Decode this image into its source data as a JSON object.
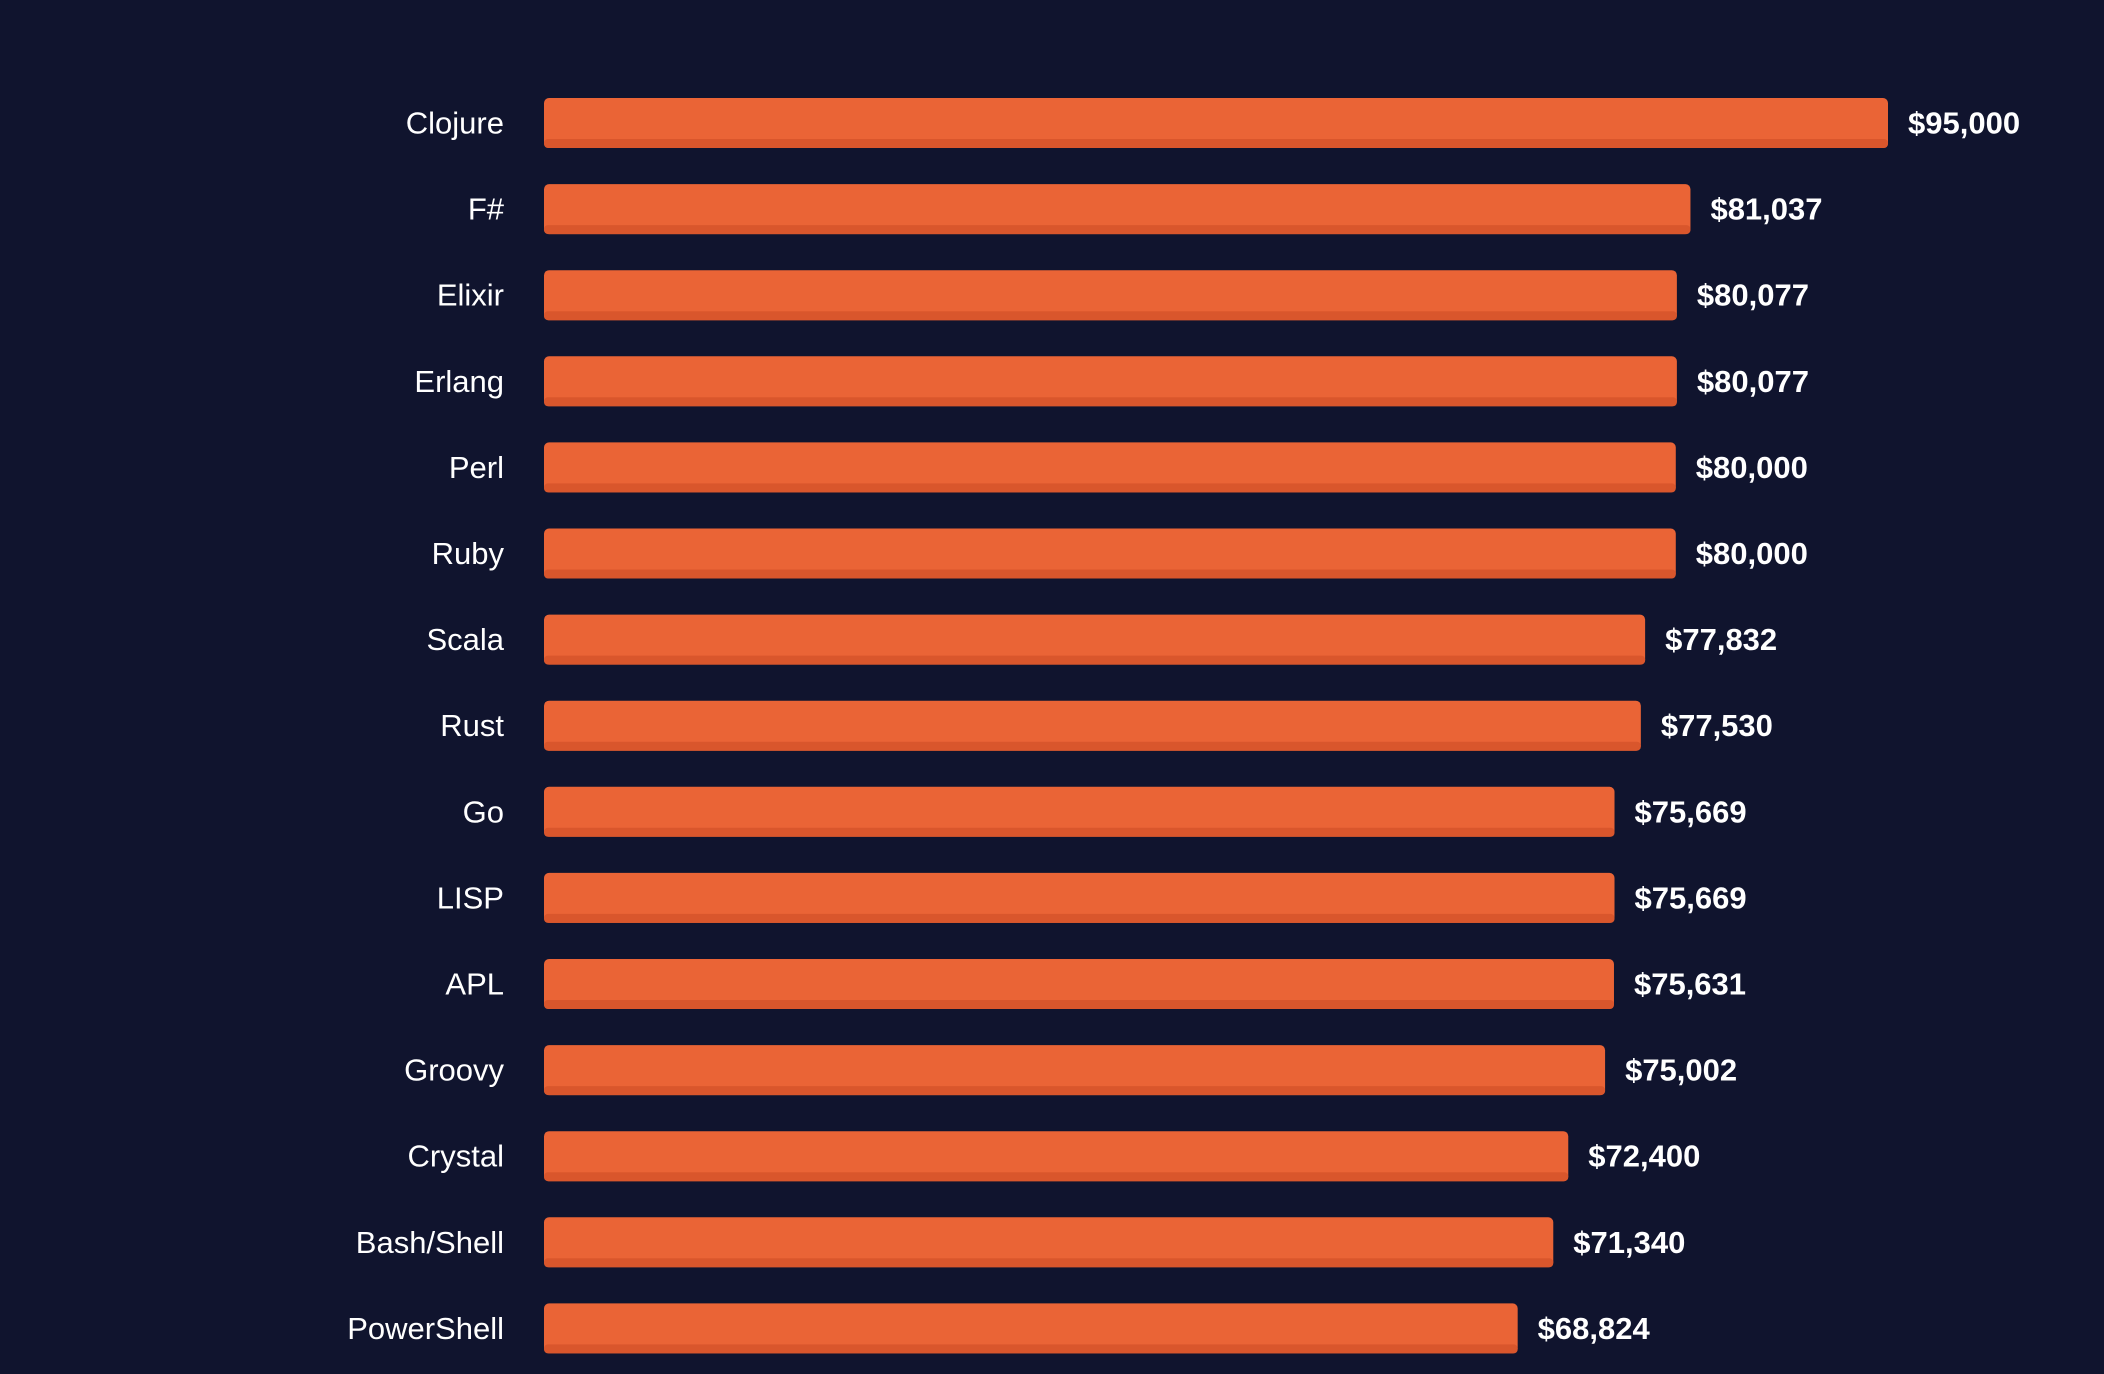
{
  "chart_data": {
    "type": "bar",
    "orientation": "horizontal",
    "categories": [
      "Clojure",
      "F#",
      "Elixir",
      "Erlang",
      "Perl",
      "Ruby",
      "Scala",
      "Rust",
      "Go",
      "LISP",
      "APL",
      "Groovy",
      "Crystal",
      "Bash/Shell",
      "PowerShell"
    ],
    "values": [
      95000,
      81037,
      80077,
      80077,
      80000,
      80000,
      77832,
      77530,
      75669,
      75669,
      75631,
      75002,
      72400,
      71340,
      68824
    ],
    "value_labels": [
      "$95,000",
      "$81,037",
      "$80,077",
      "$80,077",
      "$80,000",
      "$80,000",
      "$77,832",
      "$77,530",
      "$75,669",
      "$75,669",
      "$75,631",
      "$75,002",
      "$72,400",
      "$71,340",
      "$68,824"
    ],
    "title": "",
    "xlabel": "",
    "ylabel": "",
    "xlim": [
      0,
      95000
    ],
    "grid": false,
    "legend": "none"
  },
  "colors": {
    "background": "#10142e",
    "bar": "#ea6436",
    "bar_shadow": "#d9562c",
    "text": "#ffffff"
  }
}
